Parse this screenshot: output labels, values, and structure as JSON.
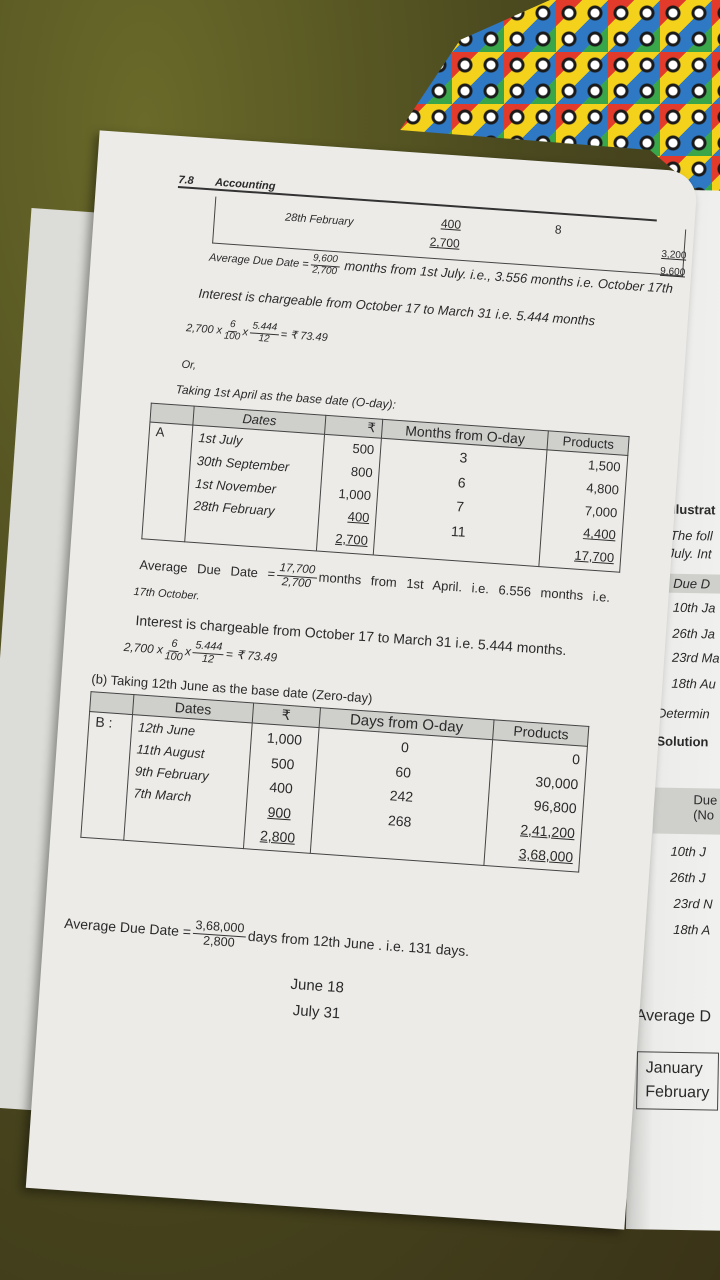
{
  "header": {
    "page_number": "7.8",
    "section": "Accounting"
  },
  "top_row": {
    "date": "28th February",
    "amount": "400",
    "amount_total": "2,700",
    "months": "8",
    "product": "3,200",
    "product_total": "9,600"
  },
  "part_a_first": {
    "add_label": "Average Due Date =",
    "add_num": "9,600",
    "add_den": "2,700",
    "add_text": "months from 1st July. i.e., 3.556 months i.e. October 17th",
    "interest_text": "Interest is chargeable from October 17 to March 31 i.e. 5.444 months",
    "calc": {
      "principal": "2,700 x",
      "r_num": "6",
      "r_den": "100",
      "x": "x",
      "t_num": "5.444",
      "t_den": "12",
      "result": "= ₹ 73.49"
    },
    "or": "Or,",
    "base_text": "Taking 1st April as the base date (O-day):"
  },
  "table_a": {
    "headers": [
      "",
      "Dates",
      "₹",
      "Months from O-day",
      "Products"
    ],
    "label": "A",
    "dates": [
      "1st July",
      "30th September",
      "1st November",
      "28th February"
    ],
    "amounts": [
      "500",
      "800",
      "1,000",
      "400"
    ],
    "amount_total": "2,700",
    "months": [
      "3",
      "6",
      "7",
      "11"
    ],
    "products": [
      "1,500",
      "4,800",
      "7,000",
      "4,400"
    ],
    "product_total": "17,700"
  },
  "part_a_second": {
    "add_label": "Average Due Date =",
    "add_num": "17,700",
    "add_den": "2,700",
    "add_text": "months from 1st April. i.e. 6.556 months i.e.",
    "add_cont": "17th October.",
    "interest_text": "Interest is chargeable from October 17 to March 31 i.e. 5.444 months.",
    "calc": {
      "principal": "2,700 x",
      "r_num": "6",
      "r_den": "100",
      "x": "x",
      "t_num": "5.444",
      "t_den": "12",
      "result": "= ₹  73.49"
    }
  },
  "part_b": {
    "heading": "(b)  Taking 12th June as the base date (Zero-day)",
    "headers": [
      "",
      "Dates",
      "₹",
      "Days from O-day",
      "Products"
    ],
    "label": "B :",
    "dates": [
      "12th June",
      "11th August",
      "9th February",
      "7th March"
    ],
    "amounts": [
      "1,000",
      "500",
      "400",
      "900"
    ],
    "amount_total": "2,800",
    "days": [
      "0",
      "60",
      "242",
      "268"
    ],
    "products": [
      "0",
      "30,000",
      "96,800",
      "2,41,200"
    ],
    "product_total": "3,68,000",
    "add_label": "Average Due Date =",
    "add_num": "3,68,000",
    "add_den": "2,800",
    "add_text": "days from 12th June . i.e. 131 days.",
    "dates_after": [
      "June 18",
      "July 31"
    ]
  },
  "right_page": {
    "title": "Illustrat",
    "intro1": "The foll",
    "intro2": "July. Int",
    "table_header": "Due D",
    "rows": [
      "10th Ja",
      "26th Ja",
      "23rd Ma",
      "18th Au"
    ],
    "determine": "Determin",
    "solution": "Solution",
    "sol_header1": "Due",
    "sol_header2": "(No",
    "sol_rows": [
      "10th J",
      "26th J",
      "23rd N",
      "18th A"
    ],
    "avg": "Average D",
    "months": [
      "January",
      "February"
    ]
  }
}
